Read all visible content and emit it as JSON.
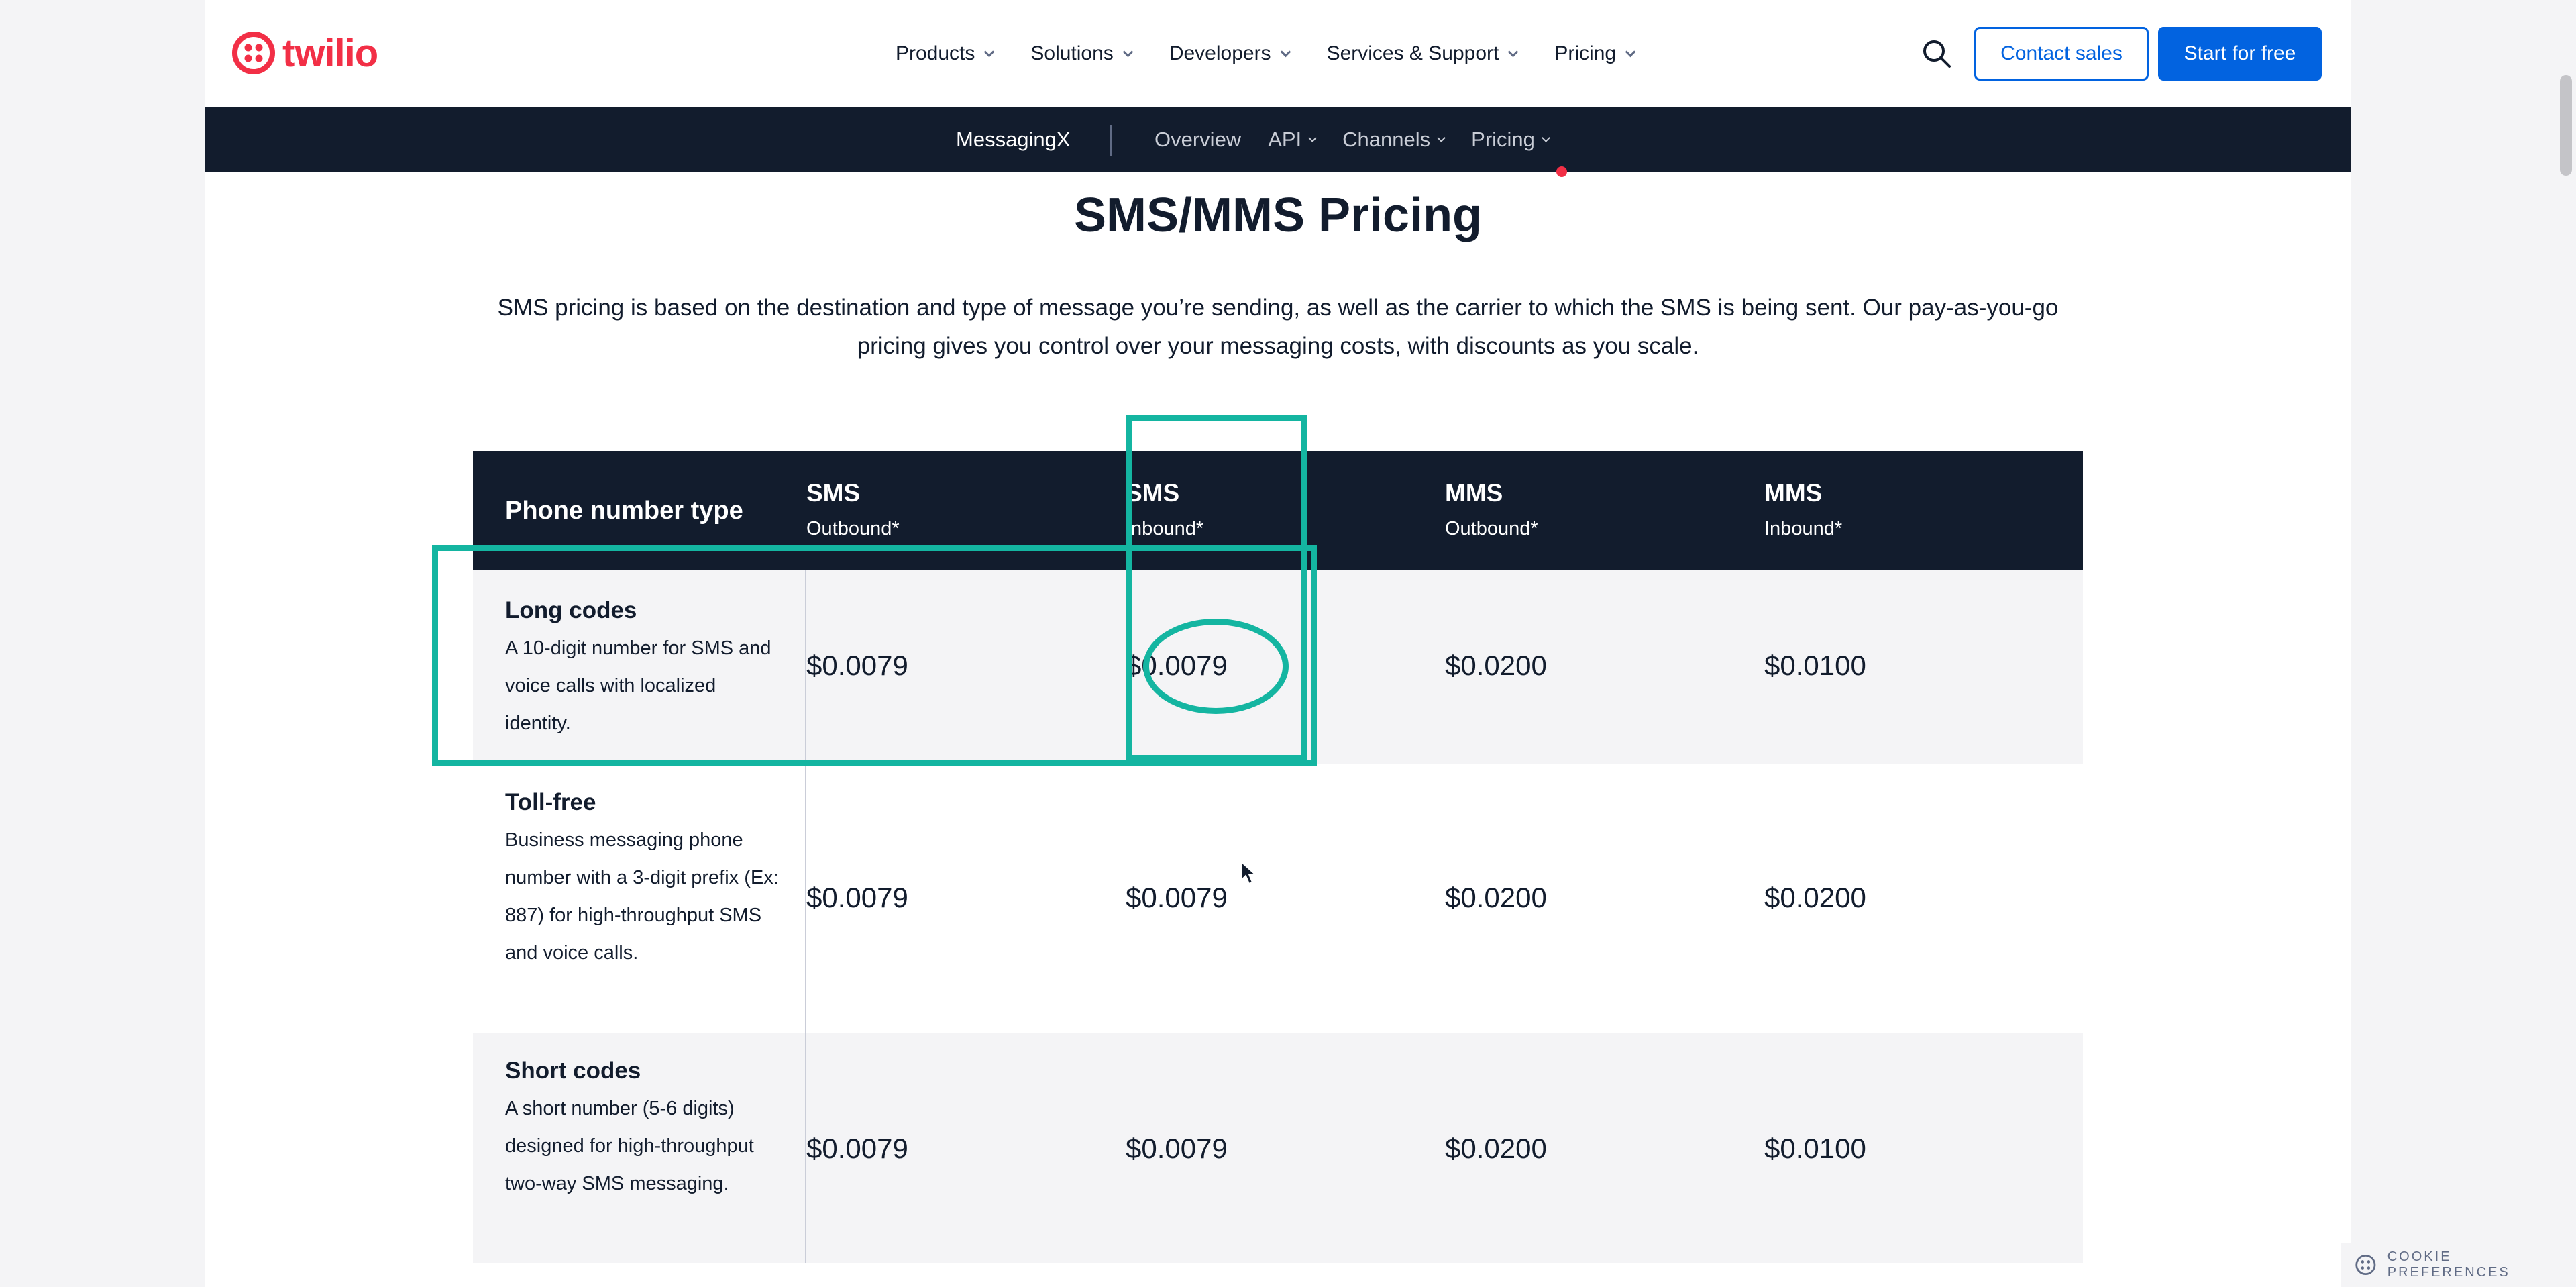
{
  "brand": {
    "logo_text": "twilio",
    "color": "#f22f46"
  },
  "nav": {
    "items": [
      {
        "label": "Products"
      },
      {
        "label": "Solutions"
      },
      {
        "label": "Developers"
      },
      {
        "label": "Services & Support"
      },
      {
        "label": "Pricing"
      }
    ],
    "search_icon": "search-icon",
    "contact_label": "Contact sales",
    "start_label": "Start for free"
  },
  "subnav": {
    "brand": "MessagingX",
    "items": [
      {
        "label": "Overview",
        "has_menu": false
      },
      {
        "label": "API",
        "has_menu": true
      },
      {
        "label": "Channels",
        "has_menu": true
      },
      {
        "label": "Pricing",
        "has_menu": true,
        "active": true
      }
    ]
  },
  "main": {
    "title": "SMS/MMS Pricing",
    "intro": "SMS pricing is based on the destination and type of message you’re sending, as well as the carrier to which the SMS is being sent. Our pay-as-you-go pricing gives you control over your messaging costs, with discounts as you scale."
  },
  "table": {
    "header_first": "Phone number type",
    "columns": [
      {
        "title": "SMS",
        "sub": "Outbound*"
      },
      {
        "title": "SMS",
        "sub": "Inbound*"
      },
      {
        "title": "MMS",
        "sub": "Outbound*"
      },
      {
        "title": "MMS",
        "sub": "Inbound*"
      }
    ],
    "rows": [
      {
        "name": "Long codes",
        "desc": "A 10-digit number for SMS and voice calls with localized identity.",
        "values": [
          "$0.0079",
          "$0.0079",
          "$0.0200",
          "$0.0100"
        ]
      },
      {
        "name": "Toll-free",
        "desc": "Business messaging phone number with a 3-digit prefix (Ex: 887) for high-throughput SMS and voice calls.",
        "values": [
          "$0.0079",
          "$0.0079",
          "$0.0200",
          "$0.0200"
        ]
      },
      {
        "name": "Short codes",
        "desc": "A short number (5-6 digits) designed for high-throughput two-way SMS messaging.",
        "values": [
          "$0.0079",
          "$0.0079",
          "$0.0200",
          "$0.0100"
        ]
      }
    ]
  },
  "annotation_color": "#14b5a1",
  "cookie": {
    "label": "COOKIE PREFERENCES"
  }
}
